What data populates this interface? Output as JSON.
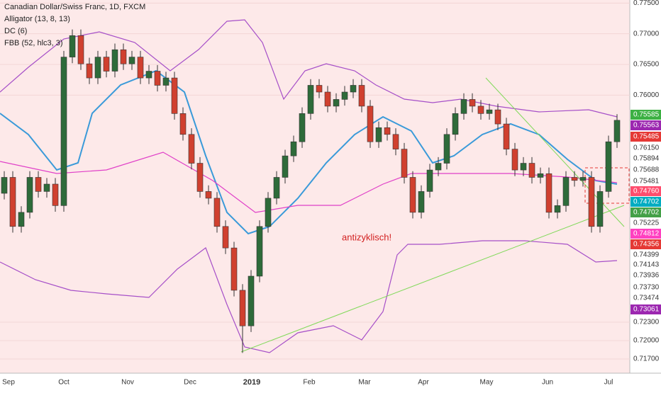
{
  "chart_data": {
    "type": "candlestick",
    "title": "Canadian Dollar/Swiss Franc, 1D, FXCM",
    "indicators": [
      "Alligator (13, 8, 13)",
      "DC (6)",
      "FBB (52, hlc3, 3)"
    ],
    "annotation": "antizyklisch!",
    "bull_color": "#2e6b3a",
    "bear_color": "#d0402f",
    "ylim": [
      0.7155,
      0.7755
    ],
    "yticks": [
      {
        "value": 0.775,
        "label": "0.77500"
      },
      {
        "value": 0.77,
        "label": "0.77000"
      },
      {
        "value": 0.765,
        "label": "0.76500"
      },
      {
        "value": 0.76,
        "label": "0.76000"
      },
      {
        "value": 0.723,
        "label": "0.72300"
      },
      {
        "value": 0.72,
        "label": "0.72000"
      },
      {
        "value": 0.717,
        "label": "0.71700"
      }
    ],
    "price_badges": [
      {
        "label": "0.75585",
        "color": "#3cb043"
      },
      {
        "label": "0.75563",
        "color": "#9c27b0"
      },
      {
        "label": "0.75485",
        "color": "#e53935"
      },
      {
        "label": "0.76150",
        "color": null
      },
      {
        "label": "0.75894",
        "color": null
      },
      {
        "label": "0.75688",
        "color": null
      },
      {
        "label": "0.75481",
        "color": null
      },
      {
        "label": "0.74760",
        "color": "#ff4d6d"
      },
      {
        "label": "0.74702",
        "color": "#00acc1"
      },
      {
        "label": "0.74702",
        "color": "#43a047"
      },
      {
        "label": "0.75225",
        "color": null
      },
      {
        "label": "0.74812",
        "color": "#ff40c0"
      },
      {
        "label": "0.74356",
        "color": "#e53935"
      },
      {
        "label": "0.74399",
        "color": null
      },
      {
        "label": "0.74143",
        "color": null
      },
      {
        "label": "0.73936",
        "color": null
      },
      {
        "label": "0.73730",
        "color": null
      },
      {
        "label": "0.73474",
        "color": null
      },
      {
        "label": "0.73061",
        "color": "#9c27b0"
      }
    ],
    "x_labels": [
      "Sep",
      "Oct",
      "Nov",
      "Dec",
      "2019",
      "Feb",
      "Mar",
      "Apr",
      "May",
      "Jun",
      "Jul"
    ],
    "candles": [
      [
        0.744,
        0.7476,
        0.743,
        0.7466
      ],
      [
        0.7466,
        0.7476,
        0.7376,
        0.7386
      ],
      [
        0.7386,
        0.7419,
        0.7376,
        0.7409
      ],
      [
        0.7409,
        0.7476,
        0.7399,
        0.7466
      ],
      [
        0.7466,
        0.7476,
        0.7433,
        0.7443
      ],
      [
        0.7443,
        0.7465,
        0.7433,
        0.7455
      ],
      [
        0.7455,
        0.7465,
        0.741,
        0.742
      ],
      [
        0.742,
        0.7672,
        0.741,
        0.7662
      ],
      [
        0.7662,
        0.7707,
        0.7652,
        0.7697
      ],
      [
        0.7697,
        0.7707,
        0.7641,
        0.7651
      ],
      [
        0.7651,
        0.7661,
        0.7618,
        0.7628
      ],
      [
        0.7628,
        0.7672,
        0.7618,
        0.7662
      ],
      [
        0.7662,
        0.7672,
        0.7629,
        0.7639
      ],
      [
        0.7639,
        0.7684,
        0.7629,
        0.7674
      ],
      [
        0.7674,
        0.7684,
        0.7641,
        0.7651
      ],
      [
        0.7651,
        0.7672,
        0.7641,
        0.7662
      ],
      [
        0.7662,
        0.7672,
        0.7618,
        0.7628
      ],
      [
        0.7628,
        0.7649,
        0.7618,
        0.7639
      ],
      [
        0.7639,
        0.7649,
        0.7606,
        0.7616
      ],
      [
        0.7616,
        0.7638,
        0.7606,
        0.7628
      ],
      [
        0.7628,
        0.7638,
        0.756,
        0.757
      ],
      [
        0.757,
        0.758,
        0.7526,
        0.7536
      ],
      [
        0.7536,
        0.7546,
        0.7479,
        0.7489
      ],
      [
        0.7489,
        0.7499,
        0.7433,
        0.7443
      ],
      [
        0.7443,
        0.7453,
        0.7422,
        0.7432
      ],
      [
        0.7432,
        0.7442,
        0.7376,
        0.7386
      ],
      [
        0.7386,
        0.7396,
        0.7341,
        0.7351
      ],
      [
        0.7351,
        0.7361,
        0.7272,
        0.7282
      ],
      [
        0.7282,
        0.7292,
        0.718,
        0.7224
      ],
      [
        0.7224,
        0.7315,
        0.7214,
        0.7305
      ],
      [
        0.7305,
        0.7396,
        0.7295,
        0.7386
      ],
      [
        0.7386,
        0.7442,
        0.7376,
        0.7432
      ],
      [
        0.7432,
        0.7476,
        0.7422,
        0.7466
      ],
      [
        0.7466,
        0.7511,
        0.7456,
        0.7501
      ],
      [
        0.7501,
        0.7534,
        0.7491,
        0.7524
      ],
      [
        0.7524,
        0.758,
        0.7514,
        0.757
      ],
      [
        0.757,
        0.7626,
        0.756,
        0.7616
      ],
      [
        0.7616,
        0.7626,
        0.7595,
        0.7605
      ],
      [
        0.7605,
        0.7615,
        0.7572,
        0.7582
      ],
      [
        0.7582,
        0.7603,
        0.7572,
        0.7593
      ],
      [
        0.7593,
        0.7615,
        0.7583,
        0.7605
      ],
      [
        0.7605,
        0.7626,
        0.7595,
        0.7616
      ],
      [
        0.7616,
        0.7626,
        0.7572,
        0.7582
      ],
      [
        0.7582,
        0.7592,
        0.7514,
        0.7524
      ],
      [
        0.7524,
        0.7557,
        0.7514,
        0.7547
      ],
      [
        0.7547,
        0.7557,
        0.7526,
        0.7536
      ],
      [
        0.7536,
        0.7546,
        0.7502,
        0.7512
      ],
      [
        0.7512,
        0.7522,
        0.7456,
        0.7466
      ],
      [
        0.7466,
        0.7476,
        0.7399,
        0.7409
      ],
      [
        0.7409,
        0.7453,
        0.7399,
        0.7443
      ],
      [
        0.7443,
        0.7488,
        0.7433,
        0.7478
      ],
      [
        0.7478,
        0.7499,
        0.7468,
        0.7489
      ],
      [
        0.7489,
        0.7546,
        0.7479,
        0.7536
      ],
      [
        0.7536,
        0.758,
        0.7526,
        0.757
      ],
      [
        0.757,
        0.7603,
        0.756,
        0.7593
      ],
      [
        0.7593,
        0.7603,
        0.7572,
        0.7582
      ],
      [
        0.7582,
        0.7592,
        0.756,
        0.757
      ],
      [
        0.757,
        0.7586,
        0.756,
        0.7576
      ],
      [
        0.7576,
        0.7586,
        0.7543,
        0.7553
      ],
      [
        0.7553,
        0.7563,
        0.7502,
        0.7512
      ],
      [
        0.7512,
        0.7522,
        0.7468,
        0.7478
      ],
      [
        0.7478,
        0.7499,
        0.7468,
        0.7489
      ],
      [
        0.7489,
        0.7499,
        0.7456,
        0.7466
      ],
      [
        0.7466,
        0.7482,
        0.7456,
        0.7472
      ],
      [
        0.7472,
        0.7482,
        0.7399,
        0.7409
      ],
      [
        0.7409,
        0.743,
        0.7399,
        0.742
      ],
      [
        0.742,
        0.7476,
        0.741,
        0.7466
      ],
      [
        0.7466,
        0.7476,
        0.7451,
        0.7461
      ],
      [
        0.7461,
        0.7476,
        0.7451,
        0.7466
      ],
      [
        0.7466,
        0.7476,
        0.7376,
        0.7386
      ],
      [
        0.7386,
        0.7453,
        0.7376,
        0.7443
      ],
      [
        0.7443,
        0.7534,
        0.7433,
        0.7524
      ],
      [
        0.7524,
        0.7569,
        0.7514,
        0.7559
      ]
    ]
  }
}
